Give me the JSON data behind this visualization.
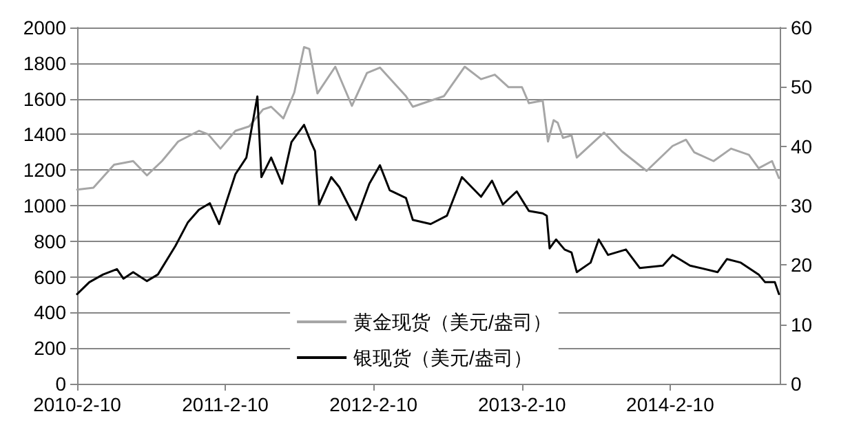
{
  "chart_data": {
    "type": "line",
    "xlim": [
      "2010-02-10",
      "2014-11-07"
    ],
    "xticks": [
      {
        "value": "2010-02-10",
        "label": "2010-2-10"
      },
      {
        "value": "2011-02-10",
        "label": "2011-2-10"
      },
      {
        "value": "2012-02-10",
        "label": "2012-2-10"
      },
      {
        "value": "2013-02-10",
        "label": "2013-2-10"
      },
      {
        "value": "2014-02-10",
        "label": "2014-2-10"
      }
    ],
    "ylim": [
      0,
      2000
    ],
    "yticks": [
      0,
      200,
      400,
      600,
      800,
      1000,
      1200,
      1400,
      1600,
      1800,
      2000
    ],
    "y2lim": [
      0,
      60
    ],
    "y2ticks": [
      0,
      10,
      20,
      30,
      40,
      50,
      60
    ],
    "grid": "y",
    "legend": "bottom",
    "marker": "none",
    "line_style": "solid",
    "series": [
      {
        "name": "黄金现货（美元/盎司）",
        "color": "#a6a6a6",
        "x": [
          "2010-02-10",
          "2010-03-22",
          "2010-05-12",
          "2010-06-28",
          "2010-08-01",
          "2010-09-07",
          "2010-10-17",
          "2010-12-07",
          "2010-12-30",
          "2011-01-29",
          "2011-03-07",
          "2011-04-10",
          "2011-05-14",
          "2011-06-03",
          "2011-07-03",
          "2011-07-30",
          "2011-08-23",
          "2011-09-05",
          "2011-09-25",
          "2011-11-08",
          "2011-12-19",
          "2012-01-25",
          "2012-02-26",
          "2012-04-30",
          "2012-05-17",
          "2012-08-02",
          "2012-09-22",
          "2012-11-01",
          "2012-12-05",
          "2013-01-08",
          "2013-02-10",
          "2013-02-27",
          "2013-04-02",
          "2013-04-15",
          "2013-04-29",
          "2013-05-09",
          "2013-05-22",
          "2013-06-12",
          "2013-06-25",
          "2013-08-31",
          "2013-10-14",
          "2013-12-14",
          "2014-02-16",
          "2014-03-21",
          "2014-04-10",
          "2014-05-28",
          "2014-07-10",
          "2014-08-23",
          "2014-09-16",
          "2014-10-19",
          "2014-11-05"
        ],
        "values": [
          1090,
          1100,
          1230,
          1250,
          1170,
          1250,
          1360,
          1420,
          1400,
          1320,
          1420,
          1445,
          1540,
          1555,
          1490,
          1635,
          1890,
          1880,
          1630,
          1780,
          1560,
          1745,
          1775,
          1615,
          1555,
          1615,
          1780,
          1710,
          1735,
          1665,
          1665,
          1575,
          1590,
          1360,
          1480,
          1465,
          1380,
          1395,
          1270,
          1410,
          1305,
          1195,
          1335,
          1370,
          1300,
          1250,
          1320,
          1285,
          1210,
          1250,
          1155
        ]
      },
      {
        "name": "银现货（美元/盎司）",
        "color": "#000000",
        "axis": "y2",
        "x": [
          "2010-02-10",
          "2010-03-12",
          "2010-04-15",
          "2010-05-19",
          "2010-06-04",
          "2010-06-28",
          "2010-08-01",
          "2010-08-28",
          "2010-10-10",
          "2010-11-10",
          "2010-12-07",
          "2011-01-03",
          "2011-01-26",
          "2011-03-07",
          "2011-04-03",
          "2011-04-30",
          "2011-05-10",
          "2011-06-03",
          "2011-06-30",
          "2011-07-23",
          "2011-08-23",
          "2011-09-09",
          "2011-09-19",
          "2011-09-29",
          "2011-10-29",
          "2011-11-18",
          "2011-12-29",
          "2012-01-31",
          "2012-02-26",
          "2012-03-21",
          "2012-04-30",
          "2012-05-17",
          "2012-06-30",
          "2012-08-09",
          "2012-09-15",
          "2012-11-01",
          "2012-11-28",
          "2012-12-25",
          "2013-01-28",
          "2013-02-27",
          "2013-04-02",
          "2013-04-12",
          "2013-04-19",
          "2013-05-05",
          "2013-05-26",
          "2013-06-12",
          "2013-06-25",
          "2013-07-29",
          "2013-08-18",
          "2013-09-10",
          "2013-10-24",
          "2013-11-27",
          "2014-01-23",
          "2014-02-16",
          "2014-03-31",
          "2014-06-07",
          "2014-06-30",
          "2014-08-03",
          "2014-09-16",
          "2014-10-02",
          "2014-10-26",
          "2014-11-05"
        ],
        "values": [
          15.1,
          17.1,
          18.4,
          19.3,
          17.7,
          18.8,
          17.3,
          18.4,
          23.2,
          27.2,
          29.3,
          30.4,
          26.9,
          35.3,
          38.1,
          48.4,
          34.8,
          38.1,
          33.7,
          40.7,
          43.6,
          40.7,
          39.2,
          30.2,
          34.8,
          33.1,
          27.6,
          33.7,
          36.8,
          32.6,
          31.3,
          27.6,
          26.9,
          28.3,
          34.8,
          31.5,
          34.2,
          30.2,
          32.4,
          29.1,
          28.7,
          28.3,
          22.8,
          24.3,
          22.6,
          22.1,
          18.8,
          20.4,
          24.3,
          21.7,
          22.6,
          19.5,
          19.9,
          21.7,
          19.9,
          18.8,
          21.0,
          20.4,
          18.4,
          17.1,
          17.1,
          15.1
        ]
      }
    ]
  }
}
